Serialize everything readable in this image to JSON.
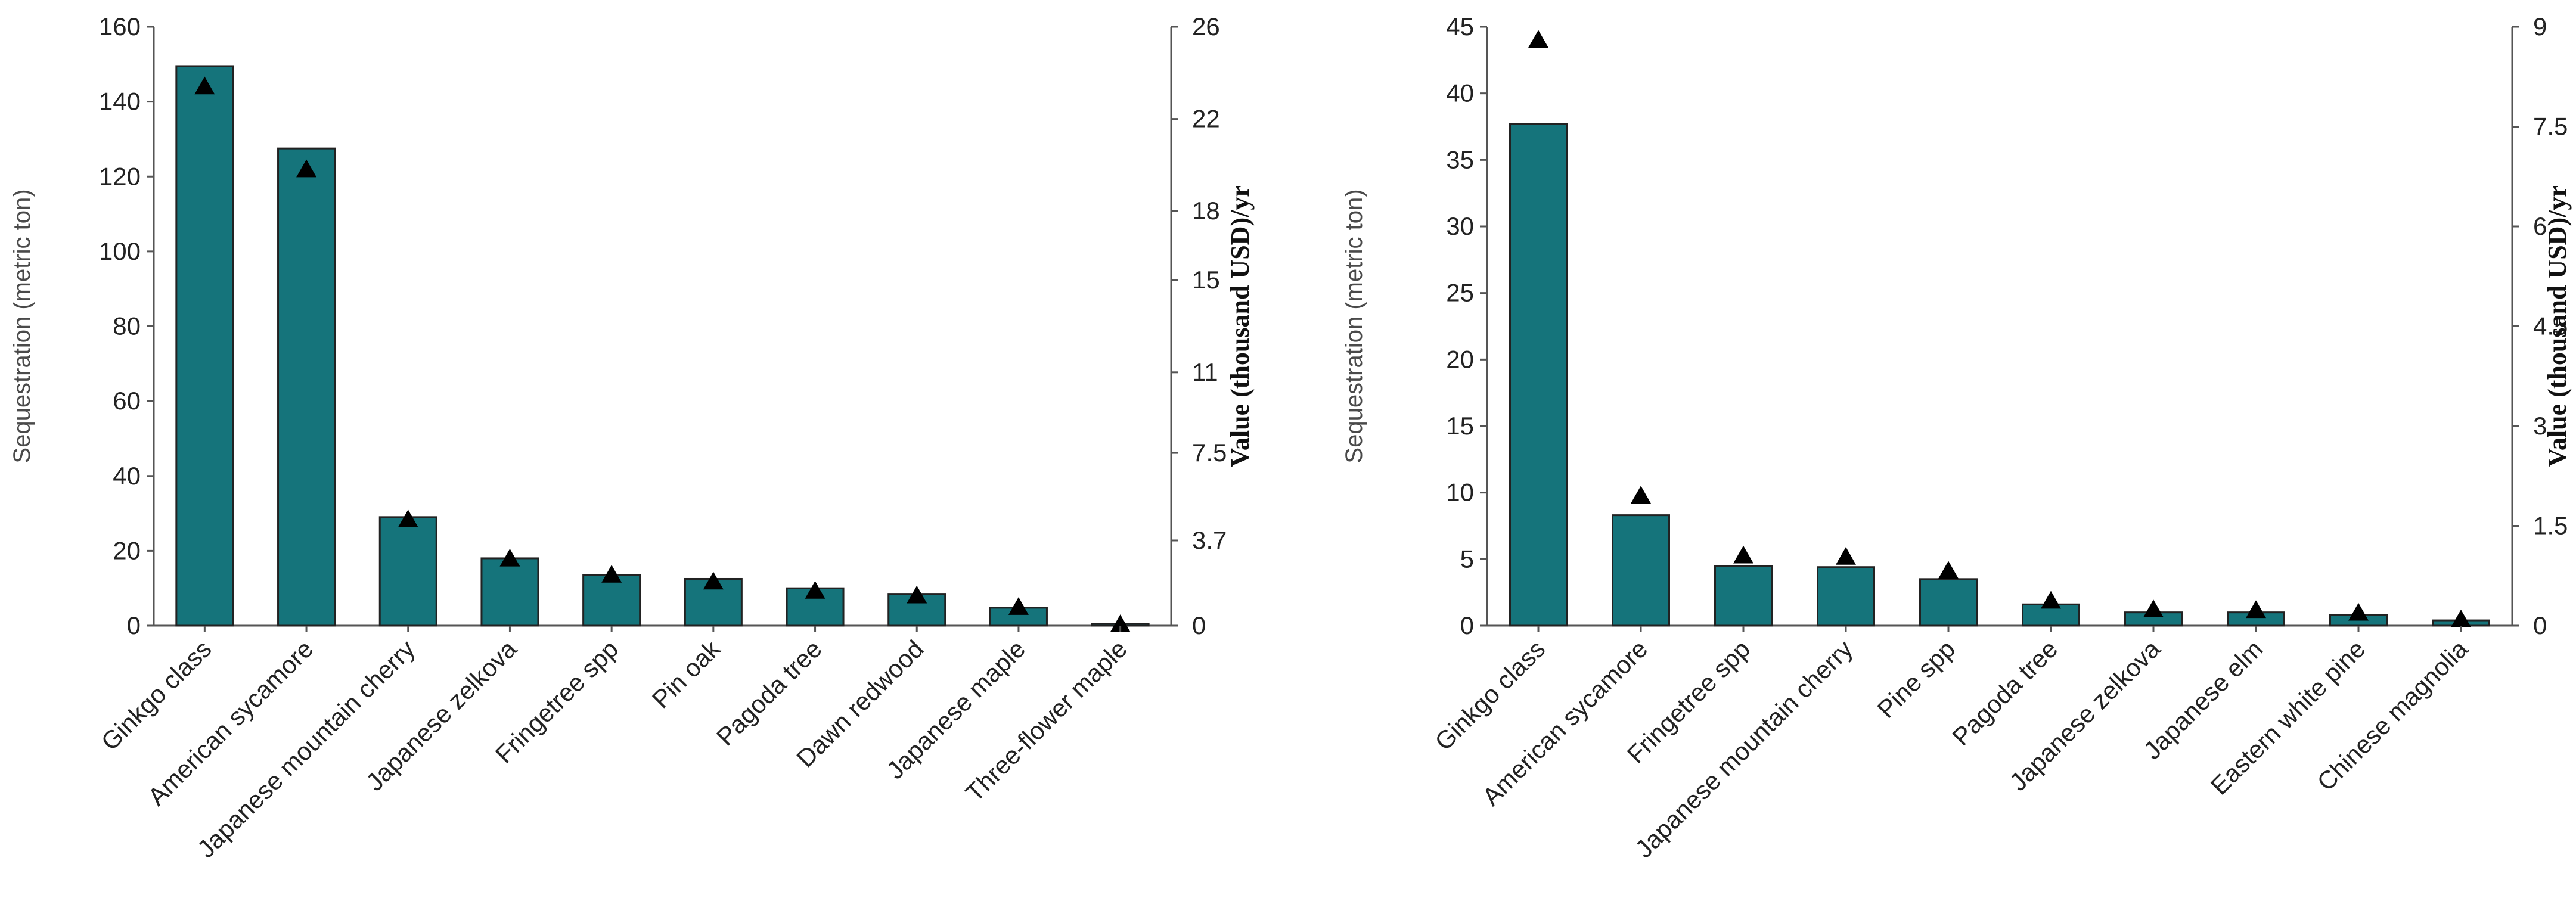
{
  "chart_data": [
    {
      "type": "bar",
      "title": "",
      "xlabel": "",
      "ylabel": "Sequestration  (metric ton)",
      "y2label": "Value (thousand USD)/yr",
      "categories": [
        "Ginkgo class",
        "American sycamore",
        "Japanese mountain cherry",
        "Japanese zelkova",
        "Fringetree spp",
        "Pin oak",
        "Pagoda tree",
        "Dawn redwood",
        "Japanese maple",
        "Three-flower maple"
      ],
      "series": [
        {
          "name": "Sequestration (metric ton)",
          "axis": "left",
          "style": "bar",
          "values": [
            149.5,
            127.5,
            29,
            18,
            13.5,
            12.5,
            10,
            8.5,
            4.8,
            0.5
          ]
        },
        {
          "name": "Value (thousand USD)/yr",
          "axis": "right",
          "style": "triangle-marker",
          "values": [
            23.4,
            19.8,
            4.6,
            2.9,
            2.2,
            1.9,
            1.5,
            1.3,
            0.8,
            0.05
          ]
        }
      ],
      "ylim": [
        0,
        160
      ],
      "yticks": [
        "0",
        "20",
        "40",
        "60",
        "80",
        "100",
        "120",
        "140",
        "160"
      ],
      "y2lim": [
        0,
        26
      ],
      "y2tick_values": [
        0,
        3.7,
        7.5,
        11,
        15,
        18,
        22,
        26
      ],
      "y2ticks": [
        "0",
        "3.7",
        "7.5",
        "11",
        "15",
        "18",
        "22",
        "26"
      ],
      "colors": {
        "bar": "#15747b",
        "marker": "#000000"
      }
    },
    {
      "type": "bar",
      "title": "",
      "xlabel": "",
      "ylabel": "Sequestration  (metric ton)",
      "y2label": "Value (thousand USD)/yr",
      "categories": [
        "Ginkgo class",
        "American sycamore",
        "Fringetree spp",
        "Japanese mountain cherry",
        "Pine spp",
        "Pagoda tree",
        "Japanese zelkova",
        "Japanese elm",
        "Eastern white pine",
        "Chinese magnolia"
      ],
      "series": [
        {
          "name": "Sequestration (metric ton)",
          "axis": "left",
          "style": "bar",
          "values": [
            37.7,
            8.3,
            4.5,
            4.4,
            3.5,
            1.6,
            1.0,
            1.0,
            0.8,
            0.4
          ]
        },
        {
          "name": "Value (thousand USD)/yr",
          "axis": "right",
          "style": "triangle-marker",
          "values": [
            8.8,
            1.95,
            1.05,
            1.03,
            0.82,
            0.37,
            0.24,
            0.23,
            0.19,
            0.09
          ]
        }
      ],
      "ylim": [
        0,
        45
      ],
      "yticks": [
        "0",
        "5",
        "10",
        "15",
        "20",
        "25",
        "30",
        "35",
        "40",
        "45"
      ],
      "y2lim": [
        0,
        9
      ],
      "y2tick_values": [
        0,
        1.5,
        3,
        4.5,
        6,
        7.5,
        9
      ],
      "y2ticks": [
        "0",
        "1.5",
        "3",
        "4.5",
        "6",
        "7.5",
        "9"
      ],
      "colors": {
        "bar": "#15747b",
        "marker": "#000000"
      }
    }
  ]
}
